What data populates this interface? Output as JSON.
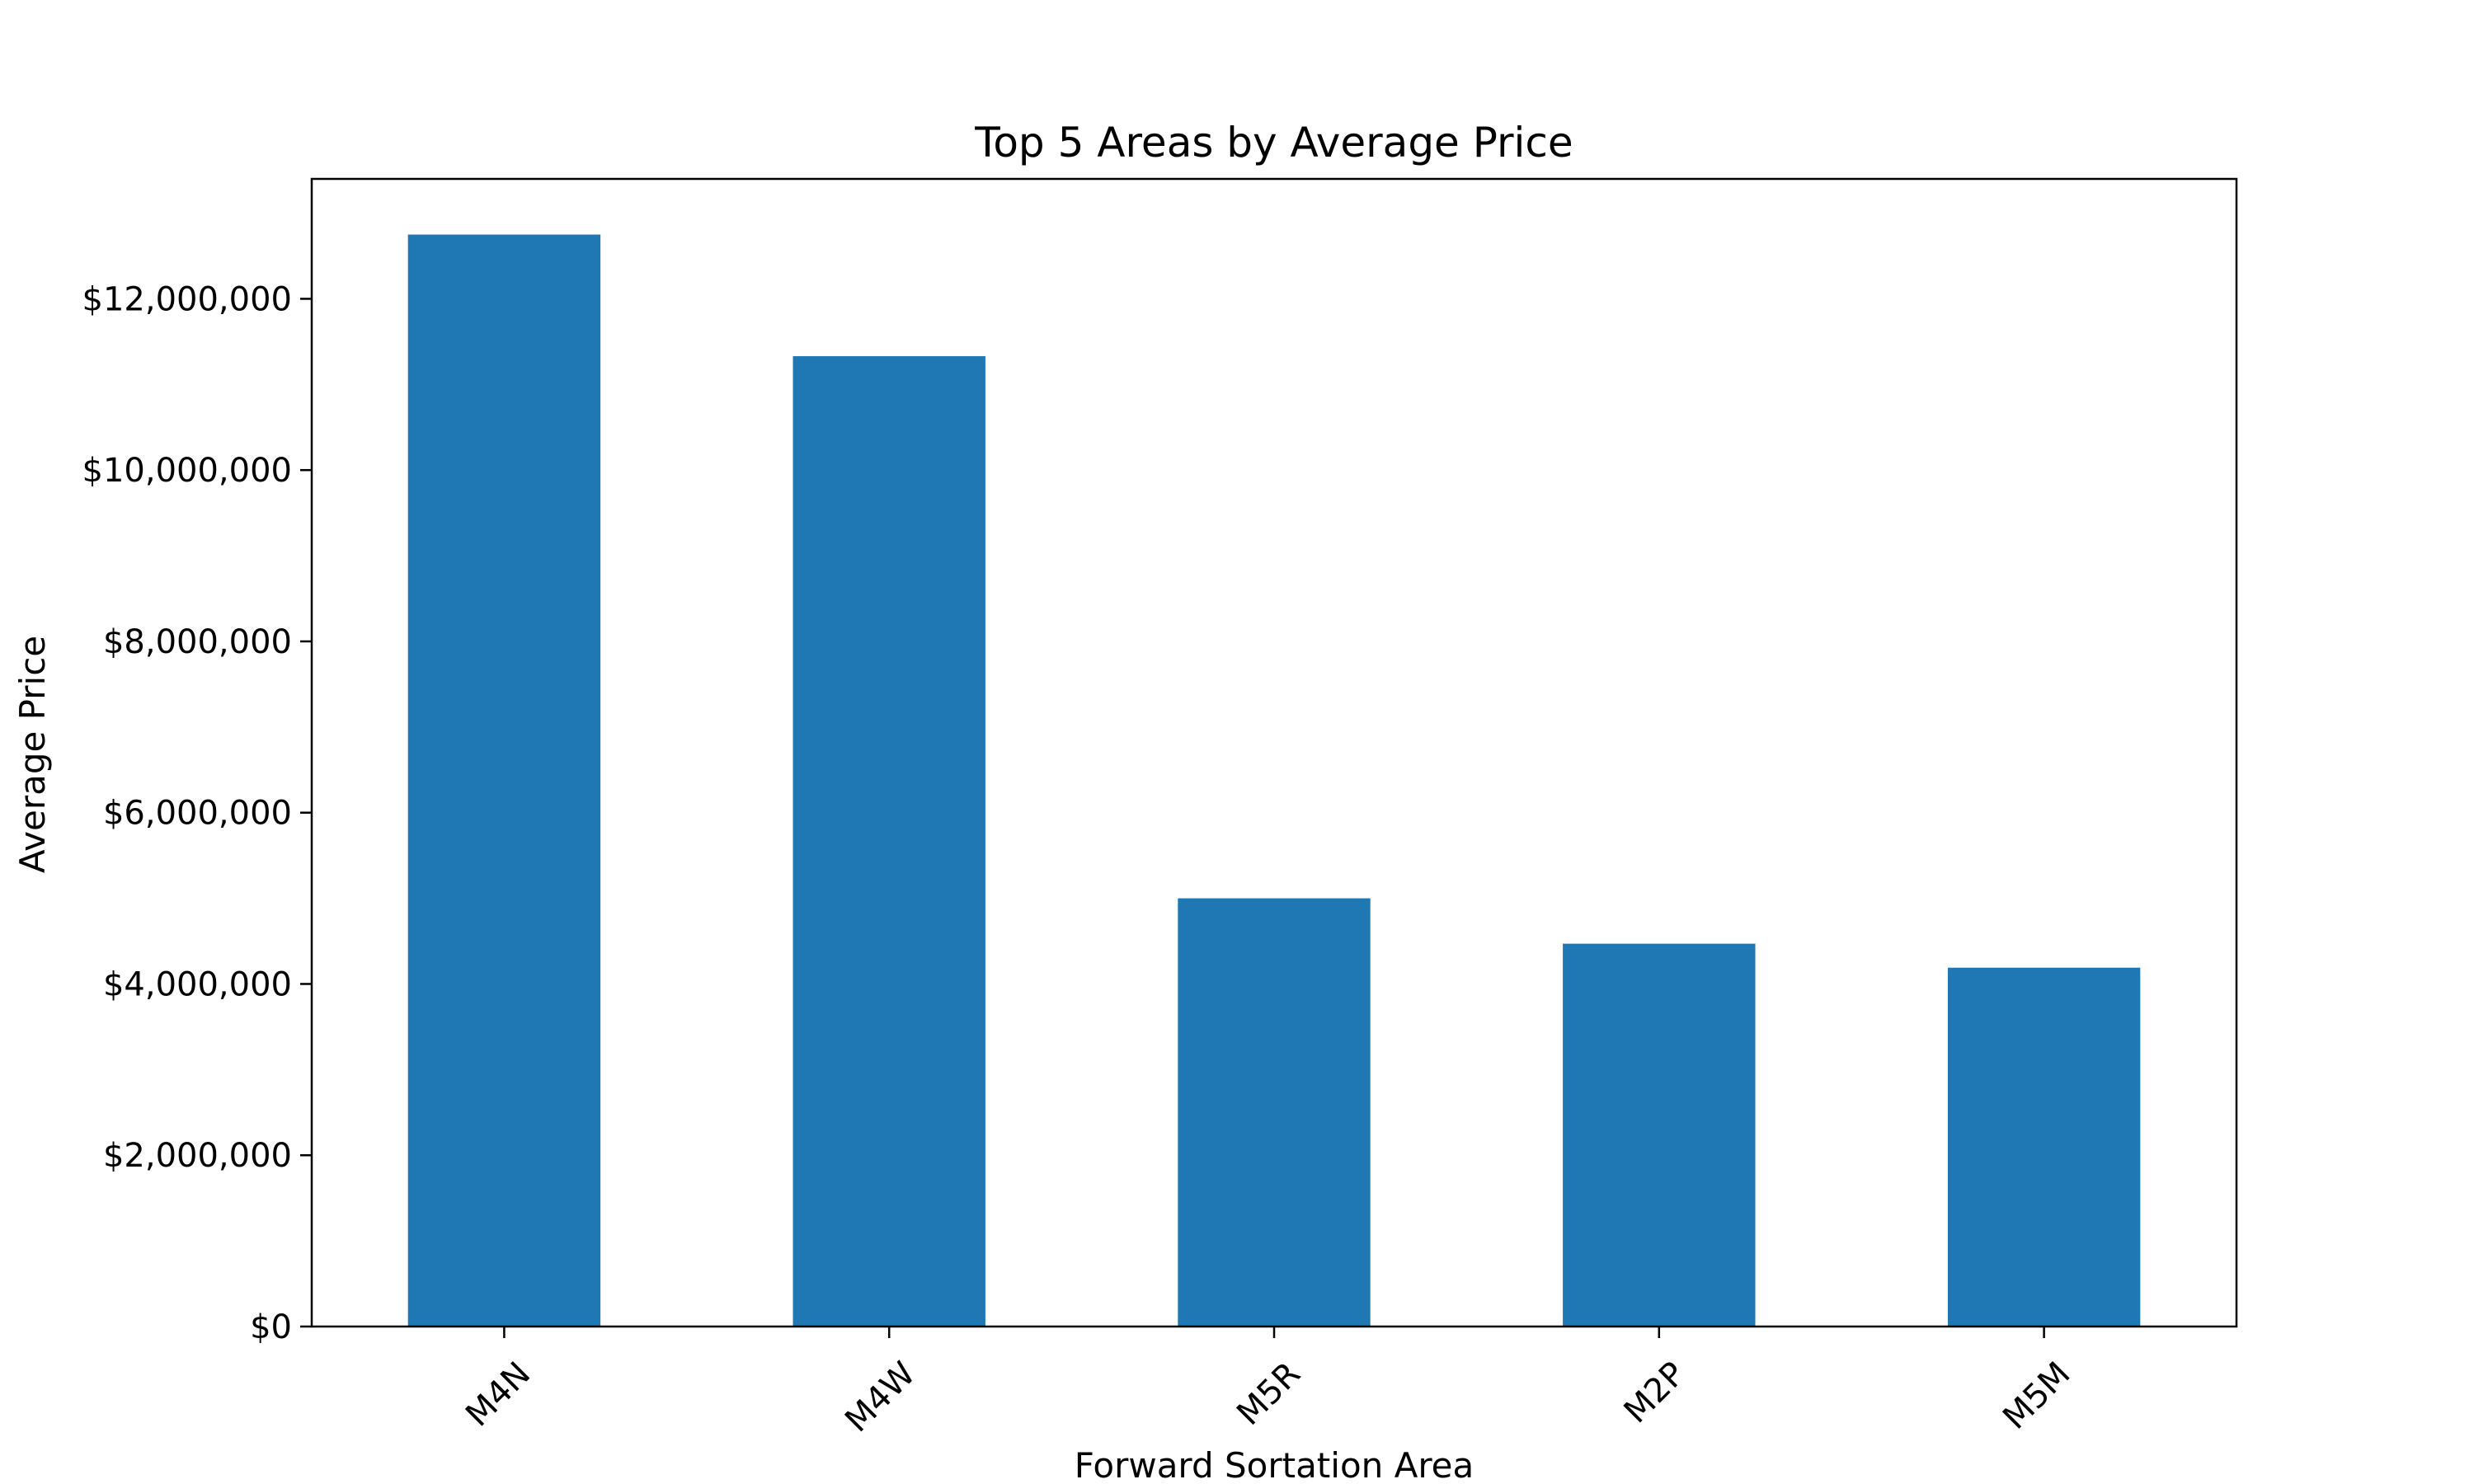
{
  "chart_data": {
    "type": "bar",
    "title": "Top 5 Areas by Average Price",
    "xlabel": "Forward Sortation Area",
    "ylabel": "Average Price",
    "categories": [
      "M4N",
      "M4W",
      "M5R",
      "M2P",
      "M5M"
    ],
    "values": [
      12750000,
      11330000,
      5000000,
      4470000,
      4190000
    ],
    "ylim": [
      0,
      13400000
    ],
    "yticks": [
      0,
      2000000,
      4000000,
      6000000,
      8000000,
      10000000,
      12000000
    ],
    "ytick_labels": [
      "$0",
      "$2,000,000",
      "$4,000,000",
      "$6,000,000",
      "$8,000,000",
      "$10,000,000",
      "$12,000,000"
    ],
    "grid": false,
    "legend": "none",
    "colors": {
      "bar": "#1f77b4",
      "axis": "#000000",
      "background": "#ffffff"
    }
  }
}
